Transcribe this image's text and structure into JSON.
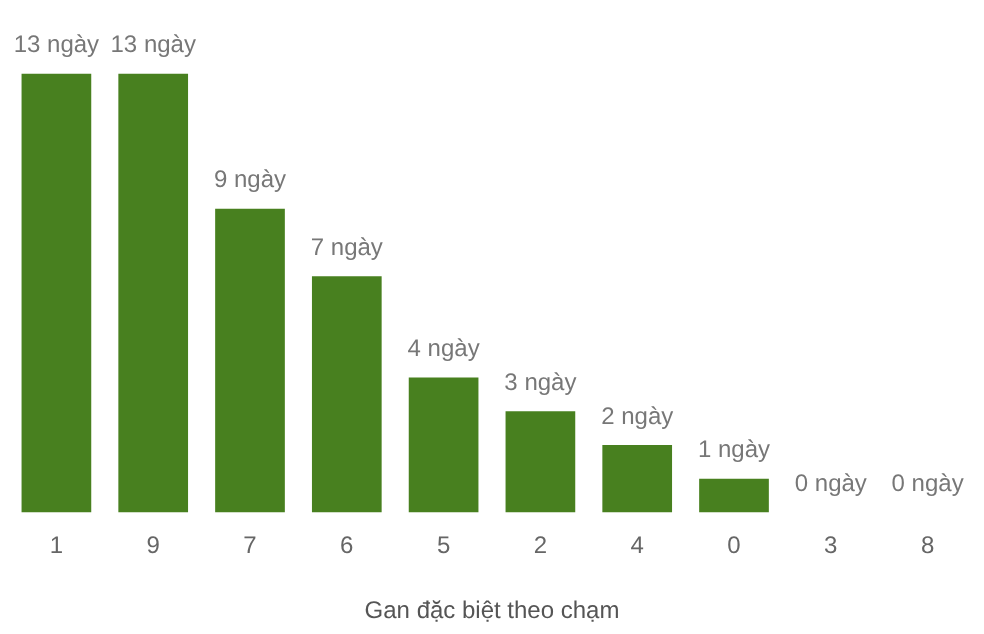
{
  "chart_data": {
    "type": "bar",
    "xlabel": "Gan đặc biệt theo chạm",
    "categories": [
      "1",
      "9",
      "7",
      "6",
      "5",
      "2",
      "4",
      "0",
      "3",
      "8"
    ],
    "values": [
      13,
      13,
      9,
      7,
      4,
      3,
      2,
      1,
      0,
      0
    ],
    "value_labels": [
      "13 ngày",
      "13 ngày",
      "9 ngày",
      "7 ngày",
      "4 ngày",
      "3 ngày",
      "2 ngày",
      "1 ngày",
      "0 ngày",
      "0 ngày"
    ],
    "color": "#48801f",
    "grid": false,
    "legend": false,
    "tick_labels": "x"
  }
}
